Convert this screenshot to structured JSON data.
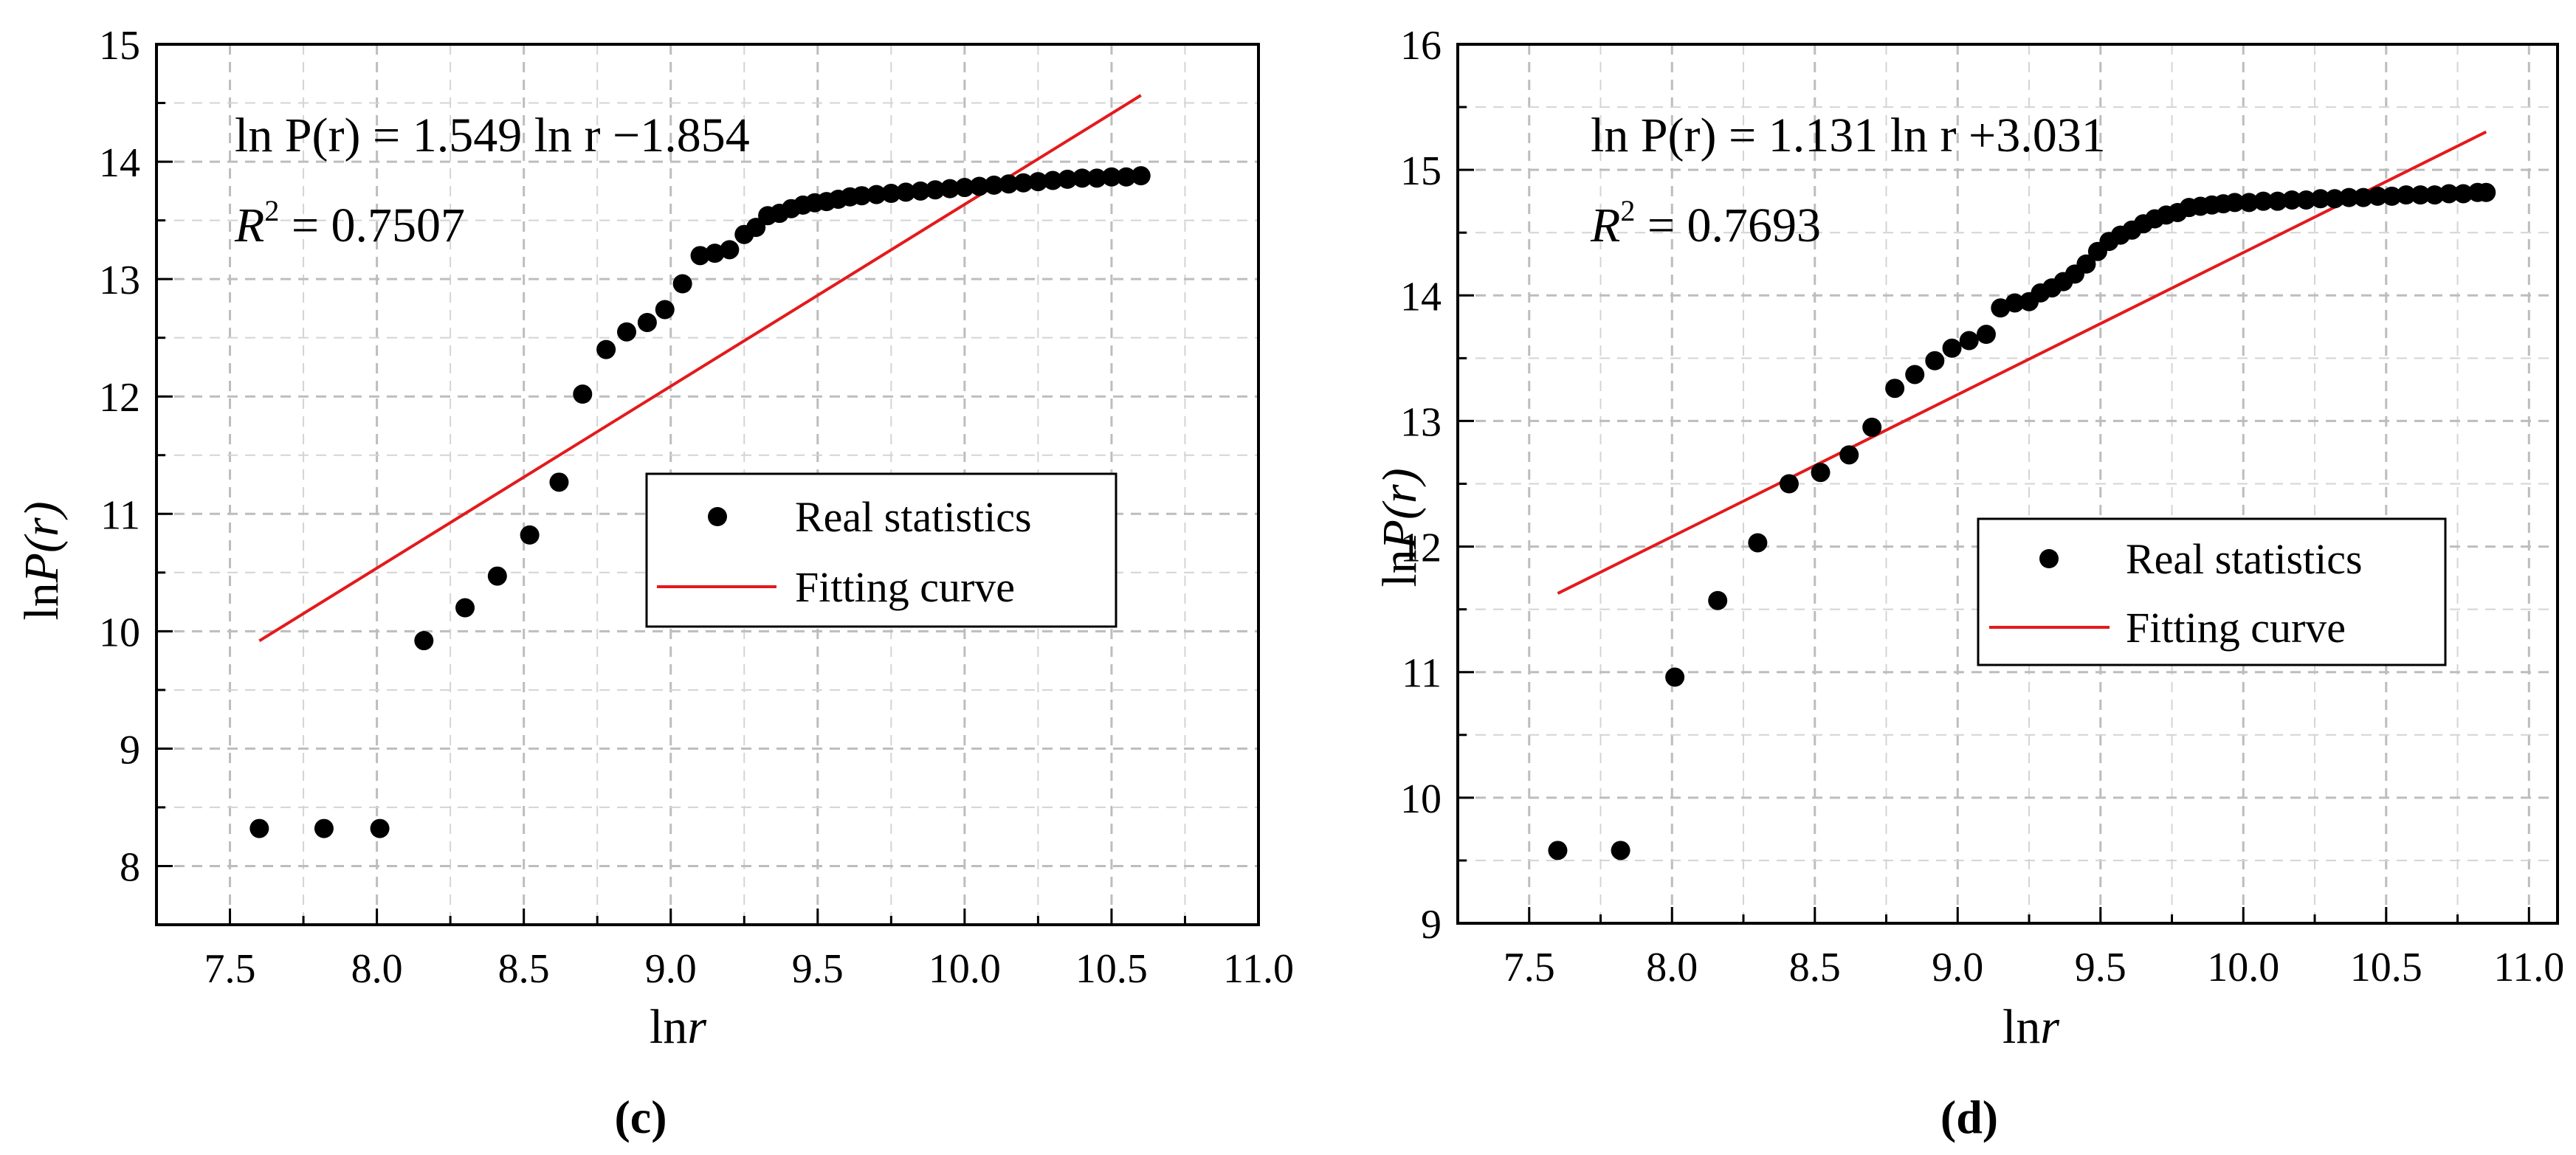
{
  "chart_data": [
    {
      "id": "c",
      "type": "scatter",
      "panel_label": "(c)",
      "xlabel_main": "ln",
      "xlabel_var": "r",
      "ylabel_main": "ln",
      "ylabel_var": "P(r)",
      "xlim": [
        7.25,
        11.0
      ],
      "ylim": [
        7.5,
        15.0
      ],
      "xticks": [
        7.5,
        8.0,
        8.5,
        9.0,
        9.5,
        10.0,
        10.5,
        11.0
      ],
      "xtick_labels": [
        "7.5",
        "8.0",
        "8.5",
        "9.0",
        "9.5",
        "10.0",
        "10.5",
        "11.0"
      ],
      "yticks": [
        8,
        9,
        10,
        11,
        12,
        13,
        14,
        15
      ],
      "ytick_labels": [
        "8",
        "9",
        "10",
        "11",
        "12",
        "13",
        "14",
        "15"
      ],
      "equation": {
        "lhs": "ln P(r) = ",
        "coef": "1.549",
        "mid": " ln r ",
        "op": "−",
        "intercept": "1.854"
      },
      "r2_label": "R",
      "r2_sup": "2",
      "r2_value": " = 0.7507",
      "legend_position": "right-middle",
      "legend": {
        "scatter": "Real statistics",
        "line": "Fitting curve"
      },
      "fit": {
        "slope": 1.549,
        "intercept": -1.854,
        "x_start": 7.6,
        "x_end": 10.6,
        "color": "#e31a1c"
      },
      "series": [
        {
          "name": "Real statistics",
          "x": [
            7.6,
            7.82,
            8.01,
            8.16,
            8.3,
            8.41,
            8.52,
            8.62,
            8.7,
            8.78,
            8.85,
            8.92,
            8.98,
            9.04,
            9.1,
            9.15,
            9.2,
            9.25,
            9.29,
            9.33,
            9.37,
            9.41,
            9.45,
            9.49,
            9.53,
            9.57,
            9.61,
            9.65,
            9.7,
            9.75,
            9.8,
            9.85,
            9.9,
            9.95,
            10.0,
            10.05,
            10.1,
            10.15,
            10.2,
            10.25,
            10.3,
            10.35,
            10.4,
            10.45,
            10.5,
            10.55,
            10.6
          ],
          "y": [
            8.32,
            8.32,
            8.32,
            9.92,
            10.2,
            10.47,
            10.82,
            11.27,
            12.02,
            12.4,
            12.55,
            12.63,
            12.74,
            12.96,
            13.2,
            13.22,
            13.25,
            13.38,
            13.44,
            13.54,
            13.56,
            13.6,
            13.63,
            13.65,
            13.66,
            13.68,
            13.7,
            13.71,
            13.72,
            13.73,
            13.74,
            13.75,
            13.76,
            13.77,
            13.78,
            13.79,
            13.8,
            13.81,
            13.82,
            13.83,
            13.84,
            13.85,
            13.86,
            13.86,
            13.87,
            13.87,
            13.88
          ],
          "color": "#000000"
        }
      ]
    },
    {
      "id": "d",
      "type": "scatter",
      "panel_label": "(d)",
      "xlabel_main": "ln",
      "xlabel_var": "r",
      "ylabel_main": "ln",
      "ylabel_var": "P(r)",
      "xlim": [
        7.25,
        11.1
      ],
      "ylim": [
        9.0,
        16.0
      ],
      "xticks": [
        7.5,
        8.0,
        8.5,
        9.0,
        9.5,
        10.0,
        10.5,
        11.0
      ],
      "xtick_labels": [
        "7.5",
        "8.0",
        "8.5",
        "9.0",
        "9.5",
        "10.0",
        "10.5",
        "11.0"
      ],
      "yticks": [
        9,
        10,
        11,
        12,
        13,
        14,
        15,
        16
      ],
      "ytick_labels": [
        "9",
        "10",
        "11",
        "12",
        "13",
        "14",
        "15",
        "16"
      ],
      "equation": {
        "lhs": "ln P(r) = ",
        "coef": "1.131",
        "mid": " ln r ",
        "op": "+",
        "intercept": "3.031"
      },
      "r2_label": "R",
      "r2_sup": "2",
      "r2_value": " = 0.7693",
      "legend_position": "right-middle",
      "legend": {
        "scatter": "Real statistics",
        "line": "Fitting curve"
      },
      "fit": {
        "slope": 1.131,
        "intercept": 3.031,
        "x_start": 7.6,
        "x_end": 10.85,
        "color": "#e31a1c"
      },
      "series": [
        {
          "name": "Real statistics",
          "x": [
            7.6,
            7.82,
            8.01,
            8.16,
            8.3,
            8.41,
            8.52,
            8.62,
            8.7,
            8.78,
            8.85,
            8.92,
            8.98,
            9.04,
            9.1,
            9.15,
            9.2,
            9.25,
            9.29,
            9.33,
            9.37,
            9.41,
            9.45,
            9.49,
            9.53,
            9.57,
            9.61,
            9.65,
            9.69,
            9.73,
            9.77,
            9.81,
            9.85,
            9.89,
            9.93,
            9.97,
            10.02,
            10.07,
            10.12,
            10.17,
            10.22,
            10.27,
            10.32,
            10.37,
            10.42,
            10.47,
            10.52,
            10.57,
            10.62,
            10.67,
            10.72,
            10.77,
            10.82,
            10.85
          ],
          "y": [
            9.58,
            9.58,
            10.96,
            11.57,
            12.03,
            12.5,
            12.59,
            12.73,
            12.95,
            13.26,
            13.37,
            13.48,
            13.58,
            13.64,
            13.69,
            13.9,
            13.94,
            13.95,
            14.02,
            14.06,
            14.11,
            14.17,
            14.25,
            14.35,
            14.43,
            14.48,
            14.52,
            14.57,
            14.61,
            14.64,
            14.66,
            14.7,
            14.71,
            14.72,
            14.73,
            14.74,
            14.74,
            14.75,
            14.75,
            14.76,
            14.76,
            14.77,
            14.77,
            14.78,
            14.78,
            14.79,
            14.79,
            14.8,
            14.8,
            14.8,
            14.81,
            14.81,
            14.82,
            14.82
          ],
          "color": "#000000"
        }
      ]
    }
  ]
}
